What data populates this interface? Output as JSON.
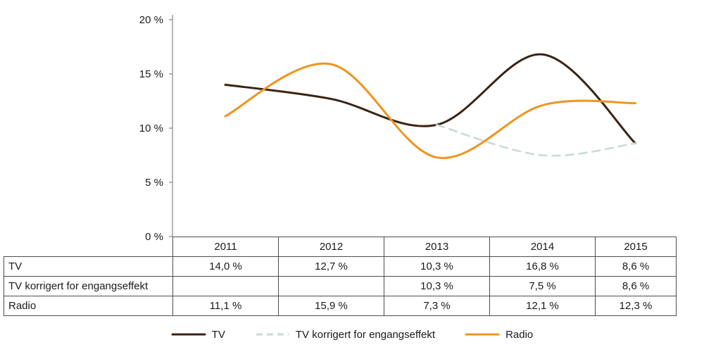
{
  "chart_data": {
    "type": "line",
    "categories": [
      "2011",
      "2012",
      "2013",
      "2014",
      "2015"
    ],
    "series": [
      {
        "name": "TV",
        "values": [
          14.0,
          12.7,
          10.3,
          16.8,
          8.6
        ],
        "color": "#3a2313",
        "dash": null
      },
      {
        "name": "TV korrigert for engangseffekt",
        "values": [
          null,
          null,
          10.3,
          7.5,
          8.6
        ],
        "color": "#c9dcd1",
        "dash": "11 8"
      },
      {
        "name": "Radio",
        "values": [
          11.1,
          15.9,
          7.3,
          12.1,
          12.3
        ],
        "color": "#f0941e",
        "dash": null
      }
    ],
    "title": "",
    "xlabel": "",
    "ylabel": "",
    "ylim": [
      0,
      20
    ],
    "ytick_step": 5,
    "ytick_labels": [
      "0 %",
      "5 %",
      "10 %",
      "15 %",
      "20 %"
    ],
    "grid": false,
    "legend_position": "bottom",
    "axis_color": "#6e6e6e"
  },
  "table": {
    "header": [
      "",
      "2011",
      "2012",
      "2013",
      "2014",
      "2015"
    ],
    "rows": [
      {
        "label": "TV",
        "cells": [
          "14,0 %",
          "12,7 %",
          "10,3 %",
          "16,8 %",
          "8,6 %"
        ]
      },
      {
        "label": "TV korrigert for engangseffekt",
        "cells": [
          "",
          "",
          "10,3 %",
          "7,5 %",
          "8,6 %"
        ]
      },
      {
        "label": "Radio",
        "cells": [
          "11,1 %",
          "15,9 %",
          "7,3 %",
          "12,1 %",
          "12,3 %"
        ]
      }
    ]
  },
  "legend": {
    "items": [
      {
        "label": "TV",
        "color": "#3a2313",
        "dash": false
      },
      {
        "label": "TV korrigert for engangseffekt",
        "color": "#c9dcd1",
        "dash": true
      },
      {
        "label": "Radio",
        "color": "#f0941e",
        "dash": false
      }
    ]
  }
}
